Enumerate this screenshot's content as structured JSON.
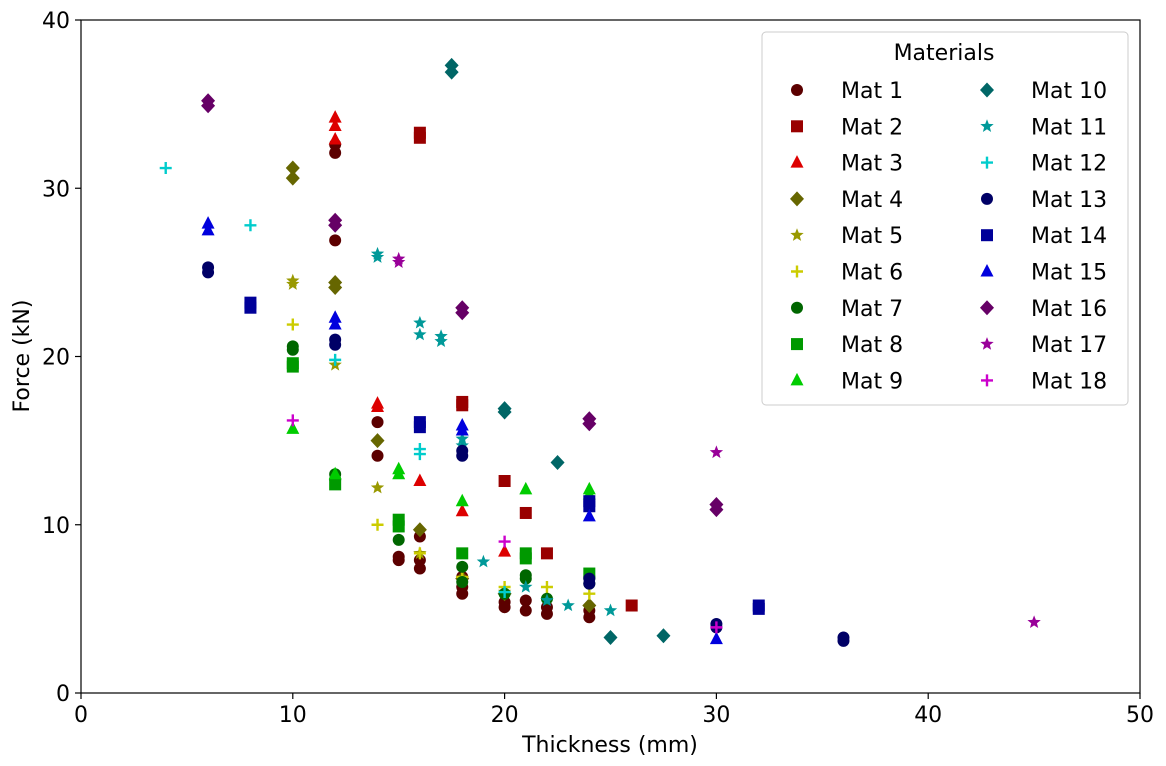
{
  "chart_data": {
    "type": "scatter",
    "xlabel": "Thickness (mm)",
    "ylabel": "Force (kN)",
    "xlim": [
      0,
      50
    ],
    "ylim": [
      0,
      40
    ],
    "xticks": [
      0,
      10,
      20,
      30,
      40,
      50
    ],
    "yticks": [
      0,
      10,
      20,
      30,
      40
    ],
    "grid": false,
    "legend": {
      "title": "Materials",
      "placement": "top-right",
      "columns": 2
    },
    "series": [
      {
        "name": "Mat 1",
        "marker": "circle",
        "color": "#5c0000",
        "points": [
          [
            12,
            32.6
          ],
          [
            12,
            32.1
          ],
          [
            12,
            26.9
          ],
          [
            14,
            16.1
          ],
          [
            14,
            14.1
          ],
          [
            15,
            8.1
          ],
          [
            15,
            7.9
          ],
          [
            16,
            9.3
          ],
          [
            16,
            7.9
          ],
          [
            16,
            7.4
          ],
          [
            18,
            6.9
          ],
          [
            18,
            6.3
          ],
          [
            18,
            5.9
          ],
          [
            20,
            5.4
          ],
          [
            20,
            5.1
          ],
          [
            21,
            5.5
          ],
          [
            21,
            4.9
          ],
          [
            22,
            5.1
          ],
          [
            22,
            4.7
          ],
          [
            24,
            4.9
          ],
          [
            24,
            4.5
          ]
        ]
      },
      {
        "name": "Mat 2",
        "marker": "square",
        "color": "#990000",
        "points": [
          [
            16,
            33.3
          ],
          [
            16,
            33.0
          ],
          [
            18,
            17.3
          ],
          [
            18,
            17.1
          ],
          [
            20,
            12.6
          ],
          [
            21,
            10.7
          ],
          [
            22,
            8.3
          ],
          [
            26,
            5.2
          ]
        ]
      },
      {
        "name": "Mat 3",
        "marker": "triangle",
        "color": "#dd0000",
        "points": [
          [
            12,
            34.2
          ],
          [
            12,
            33.7
          ],
          [
            12,
            32.9
          ],
          [
            14,
            17.2
          ],
          [
            14,
            17.0
          ],
          [
            16,
            12.6
          ],
          [
            18,
            10.8
          ],
          [
            20,
            8.4
          ]
        ]
      },
      {
        "name": "Mat 4",
        "marker": "diamond",
        "color": "#666600",
        "points": [
          [
            10,
            31.2
          ],
          [
            10,
            30.6
          ],
          [
            12,
            24.4
          ],
          [
            12,
            24.1
          ],
          [
            14,
            15.0
          ],
          [
            16,
            9.7
          ],
          [
            18,
            6.8
          ],
          [
            20,
            5.9
          ],
          [
            24,
            5.2
          ]
        ]
      },
      {
        "name": "Mat 5",
        "marker": "star",
        "color": "#999900",
        "points": [
          [
            10,
            24.5
          ],
          [
            10,
            24.3
          ],
          [
            12,
            19.5
          ],
          [
            14,
            12.2
          ],
          [
            16,
            8.3
          ],
          [
            18,
            6.8
          ],
          [
            20,
            6.0
          ]
        ]
      },
      {
        "name": "Mat 6",
        "marker": "plus",
        "color": "#cccc00",
        "points": [
          [
            10,
            21.9
          ],
          [
            14,
            10.0
          ],
          [
            16,
            8.3
          ],
          [
            18,
            6.9
          ],
          [
            20,
            6.3
          ],
          [
            22,
            6.3
          ],
          [
            24,
            5.9
          ]
        ]
      },
      {
        "name": "Mat 7",
        "marker": "circle",
        "color": "#006600",
        "points": [
          [
            10,
            20.6
          ],
          [
            10,
            20.4
          ],
          [
            12,
            13.0
          ],
          [
            12,
            12.7
          ],
          [
            15,
            9.1
          ],
          [
            18,
            7.5
          ],
          [
            18,
            6.6
          ],
          [
            20,
            5.9
          ],
          [
            21,
            7.0
          ],
          [
            21,
            6.8
          ],
          [
            22,
            5.6
          ],
          [
            24,
            6.9
          ],
          [
            24,
            6.5
          ]
        ]
      },
      {
        "name": "Mat 8",
        "marker": "square",
        "color": "#009900",
        "points": [
          [
            10,
            19.6
          ],
          [
            10,
            19.4
          ],
          [
            12,
            12.4
          ],
          [
            15,
            10.3
          ],
          [
            15,
            9.9
          ],
          [
            18,
            8.3
          ],
          [
            21,
            8.3
          ],
          [
            21,
            8.0
          ],
          [
            24,
            7.1
          ]
        ]
      },
      {
        "name": "Mat 9",
        "marker": "triangle",
        "color": "#00cc00",
        "points": [
          [
            10,
            15.7
          ],
          [
            12,
            13.0
          ],
          [
            15,
            13.3
          ],
          [
            15,
            13.0
          ],
          [
            18,
            11.4
          ],
          [
            21,
            12.1
          ],
          [
            24,
            12.1
          ],
          [
            24,
            11.8
          ]
        ]
      },
      {
        "name": "Mat 10",
        "marker": "diamond",
        "color": "#006666",
        "points": [
          [
            17.5,
            37.3
          ],
          [
            17.5,
            36.9
          ],
          [
            20,
            16.9
          ],
          [
            20,
            16.7
          ],
          [
            22.5,
            13.7
          ],
          [
            25,
            3.3
          ],
          [
            27.5,
            3.4
          ]
        ]
      },
      {
        "name": "Mat 11",
        "marker": "star",
        "color": "#009999",
        "points": [
          [
            14,
            26.1
          ],
          [
            14,
            25.9
          ],
          [
            16,
            22.0
          ],
          [
            16,
            21.3
          ],
          [
            17,
            21.2
          ],
          [
            17,
            20.9
          ],
          [
            18,
            15.1
          ],
          [
            18,
            14.7
          ],
          [
            19,
            7.8
          ],
          [
            21,
            6.3
          ],
          [
            22,
            5.5
          ],
          [
            23,
            5.2
          ],
          [
            25,
            4.9
          ]
        ]
      },
      {
        "name": "Mat 12",
        "marker": "plus",
        "color": "#00cccc",
        "points": [
          [
            4,
            31.2
          ],
          [
            8,
            27.8
          ],
          [
            12,
            19.8
          ],
          [
            16,
            14.5
          ],
          [
            16,
            14.2
          ],
          [
            20,
            6.0
          ]
        ]
      },
      {
        "name": "Mat 13",
        "marker": "circle",
        "color": "#000066",
        "points": [
          [
            6,
            25.3
          ],
          [
            6,
            25.0
          ],
          [
            12,
            21.0
          ],
          [
            12,
            20.7
          ],
          [
            18,
            14.4
          ],
          [
            18,
            14.1
          ],
          [
            24,
            6.8
          ],
          [
            24,
            6.5
          ],
          [
            30,
            4.1
          ],
          [
            30,
            3.9
          ],
          [
            36,
            3.3
          ],
          [
            36,
            3.1
          ]
        ]
      },
      {
        "name": "Mat 14",
        "marker": "square",
        "color": "#000099",
        "points": [
          [
            8,
            23.2
          ],
          [
            8,
            22.9
          ],
          [
            16,
            16.1
          ],
          [
            16,
            15.8
          ],
          [
            24,
            11.4
          ],
          [
            24,
            11.1
          ],
          [
            32,
            5.2
          ],
          [
            32,
            5.0
          ]
        ]
      },
      {
        "name": "Mat 15",
        "marker": "triangle",
        "color": "#0000dd",
        "points": [
          [
            6,
            27.9
          ],
          [
            6,
            27.5
          ],
          [
            12,
            22.3
          ],
          [
            12,
            21.9
          ],
          [
            18,
            15.9
          ],
          [
            18,
            15.6
          ],
          [
            24,
            10.5
          ],
          [
            30,
            3.2
          ]
        ]
      },
      {
        "name": "Mat 16",
        "marker": "diamond",
        "color": "#660066",
        "points": [
          [
            6,
            35.2
          ],
          [
            6,
            34.9
          ],
          [
            12,
            28.1
          ],
          [
            12,
            27.8
          ],
          [
            18,
            22.9
          ],
          [
            18,
            22.6
          ],
          [
            24,
            16.3
          ],
          [
            24,
            16.0
          ],
          [
            30,
            11.2
          ],
          [
            30,
            10.9
          ]
        ]
      },
      {
        "name": "Mat 17",
        "marker": "star",
        "color": "#990099",
        "points": [
          [
            15,
            25.8
          ],
          [
            15,
            25.6
          ],
          [
            30,
            14.3
          ],
          [
            45,
            4.2
          ]
        ]
      },
      {
        "name": "Mat 18",
        "marker": "plus",
        "color": "#cc00cc",
        "points": [
          [
            10,
            16.2
          ],
          [
            20,
            9.0
          ],
          [
            30,
            3.9
          ]
        ]
      }
    ]
  }
}
